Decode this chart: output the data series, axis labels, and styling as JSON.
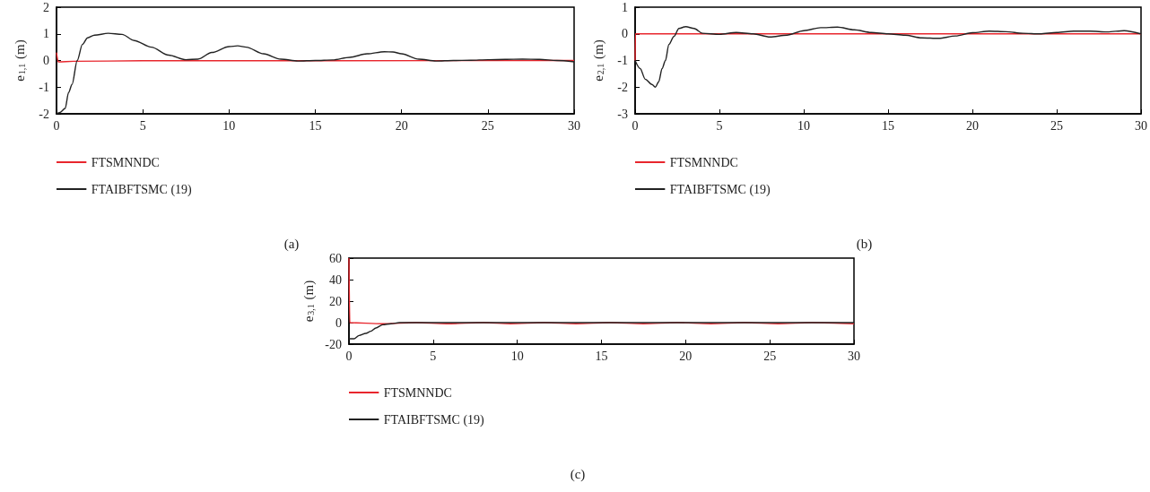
{
  "chart_data": [
    {
      "type": "line",
      "ylabel": "e$_{1,1}$ (m)",
      "xlim": [
        0,
        30
      ],
      "xticks": [
        0,
        5,
        10,
        15,
        20,
        25,
        30
      ],
      "ylim": [
        -2,
        2
      ],
      "yticks": [
        -2,
        -1,
        0,
        1,
        2
      ],
      "grid": false,
      "legend": "bottom",
      "marker": "none",
      "line_style": "solid",
      "annotations": [
        "(a)"
      ],
      "series": [
        {
          "name": "FTSMNNDC",
          "color": "#e8262d",
          "x": [
            0,
            0.1,
            1,
            5,
            30
          ],
          "values": [
            0.3,
            -0.05,
            -0.03,
            -0.01,
            0
          ]
        },
        {
          "name": "FTAIBFTSMC (19)",
          "color": "#222222",
          "x": [
            0,
            0.2,
            0.5,
            0.7,
            0.9,
            1.2,
            1.5,
            1.8,
            2.2,
            3,
            3.8,
            4.5,
            5.5,
            6.5,
            7.5,
            8.2,
            9,
            10,
            10.5,
            11,
            12,
            13,
            14,
            15,
            16,
            17,
            18,
            19,
            19.5,
            20,
            21,
            22,
            23,
            24,
            25,
            26,
            27,
            28,
            29,
            30
          ],
          "values": [
            -2,
            -1.95,
            -1.8,
            -1.2,
            -0.9,
            0,
            0.6,
            0.85,
            0.95,
            1.02,
            0.98,
            0.75,
            0.5,
            0.2,
            0.03,
            0.05,
            0.3,
            0.52,
            0.55,
            0.5,
            0.25,
            0.05,
            -0.02,
            0,
            0.02,
            0.12,
            0.25,
            0.33,
            0.32,
            0.25,
            0.05,
            -0.02,
            0,
            0.01,
            0.03,
            0.04,
            0.05,
            0.04,
            0,
            -0.05
          ]
        }
      ]
    },
    {
      "type": "line",
      "ylabel": "e$_{2,1}$ (m)",
      "xlim": [
        0,
        30
      ],
      "xticks": [
        0,
        5,
        10,
        15,
        20,
        25,
        30
      ],
      "ylim": [
        -3,
        1
      ],
      "yticks": [
        -3,
        -2,
        -1,
        0,
        1
      ],
      "grid": false,
      "legend": "bottom",
      "marker": "none",
      "line_style": "solid",
      "annotations": [
        "(b)"
      ],
      "series": [
        {
          "name": "FTSMNNDC",
          "color": "#e8262d",
          "x": [
            0,
            0.02,
            30
          ],
          "values": [
            -1,
            0,
            0
          ]
        },
        {
          "name": "FTAIBFTSMC (19)",
          "color": "#222222",
          "x": [
            0,
            0.3,
            0.6,
            1,
            1.2,
            1.4,
            1.6,
            1.8,
            2,
            2.3,
            2.6,
            3,
            3.5,
            4,
            5,
            6,
            7,
            8,
            9,
            10,
            11,
            12,
            13,
            14,
            15,
            16,
            17,
            18,
            19,
            20,
            21,
            22,
            23,
            24,
            25,
            26,
            27,
            28,
            29,
            30
          ],
          "values": [
            -1,
            -1.3,
            -1.7,
            -1.9,
            -2,
            -1.8,
            -1.3,
            -1,
            -0.4,
            -0.1,
            0.2,
            0.27,
            0.2,
            0.02,
            -0.02,
            0.05,
            0,
            -0.12,
            -0.05,
            0.12,
            0.23,
            0.25,
            0.15,
            0.05,
            0,
            -0.05,
            -0.15,
            -0.17,
            -0.08,
            0.04,
            0.1,
            0.08,
            0.02,
            0,
            0.05,
            0.1,
            0.1,
            0.07,
            0.12,
            0
          ]
        }
      ]
    },
    {
      "type": "line",
      "ylabel": "e$_{3,1}$ (m)",
      "xlim": [
        0,
        30
      ],
      "xticks": [
        0,
        5,
        10,
        15,
        20,
        25,
        30
      ],
      "ylim": [
        -20,
        60
      ],
      "yticks": [
        -20,
        0,
        20,
        40,
        60
      ],
      "grid": false,
      "legend": "bottom",
      "marker": "none",
      "line_style": "solid",
      "annotations": [
        "(c)"
      ],
      "series": [
        {
          "name": "FTSMNNDC",
          "color": "#e8262d",
          "x": [
            0,
            0.05,
            2,
            4,
            5.8,
            8,
            9.6,
            11.6,
            13.5,
            15.5,
            17.5,
            19.5,
            21.5,
            23.5,
            25.5,
            27.5,
            30
          ],
          "values": [
            60,
            0,
            -1,
            0,
            -1,
            0,
            -1,
            0,
            -1,
            0,
            -1,
            0,
            -1,
            0,
            -1,
            0,
            -1
          ]
        },
        {
          "name": "FTAIBFTSMC (19)",
          "color": "#222222",
          "x": [
            0,
            0.3,
            0.6,
            1,
            1.3,
            1.6,
            2,
            2.5,
            3,
            3.5,
            5,
            30
          ],
          "values": [
            -15,
            -15,
            -12,
            -10,
            -8,
            -5,
            -2,
            -1,
            0,
            0,
            0,
            0
          ]
        }
      ]
    }
  ]
}
